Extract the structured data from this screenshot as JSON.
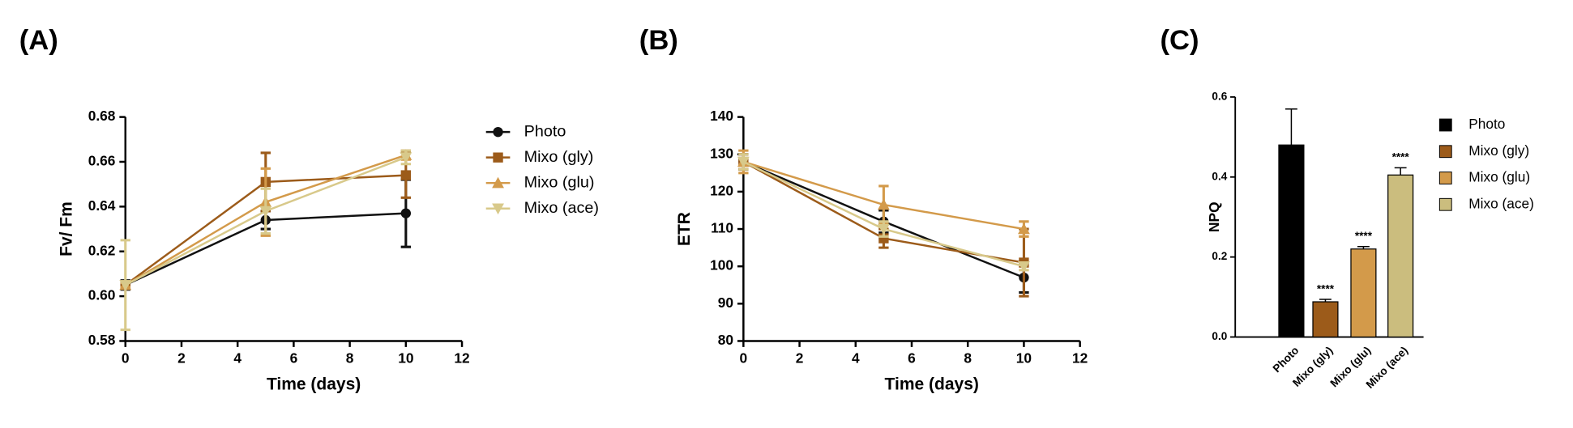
{
  "chart_data": [
    {
      "type": "line",
      "label": "(A)",
      "xlabel": "Time (days)",
      "ylabel": "Fv/ Fm",
      "xlim": [
        0,
        12
      ],
      "xticks": [
        0,
        2,
        4,
        6,
        8,
        10,
        12
      ],
      "ylim": [
        0.58,
        0.68
      ],
      "yticks": [
        0.58,
        {
          "value": 0.6,
          "label": "0.60"
        },
        0.62,
        0.64,
        0.66,
        0.68
      ],
      "x": [
        0,
        5,
        10
      ],
      "series": [
        {
          "name": "Photo",
          "color": "#111111",
          "marker": "circle",
          "values": [
            0.605,
            0.634,
            0.637
          ],
          "errors": [
            0.002,
            0.004,
            0.015
          ]
        },
        {
          "name": "Mixo (gly)",
          "color": "#9c5b1a",
          "marker": "square",
          "values": [
            0.605,
            0.651,
            0.654
          ],
          "errors": [
            0.001,
            0.013,
            0.01
          ]
        },
        {
          "name": "Mixo (glu)",
          "color": "#d39a4a",
          "marker": "triangle-up",
          "values": [
            0.605,
            0.642,
            0.663
          ],
          "errors": [
            0.001,
            0.015,
            0.002
          ]
        },
        {
          "name": "Mixo (ace)",
          "color": "#d8c98a",
          "marker": "triangle-down",
          "values": [
            0.605,
            0.638,
            0.662
          ],
          "errors": [
            0.02,
            0.01,
            0.003
          ]
        }
      ]
    },
    {
      "type": "line",
      "label": "(B)",
      "xlabel": "Time (days)",
      "ylabel": "ETR",
      "xlim": [
        0,
        12
      ],
      "xticks": [
        0,
        2,
        4,
        6,
        8,
        10,
        12
      ],
      "ylim": [
        80,
        140
      ],
      "yticks": [
        80,
        90,
        100,
        110,
        120,
        130,
        140
      ],
      "x": [
        0,
        5,
        10
      ],
      "series": [
        {
          "name": "Photo",
          "color": "#111111",
          "marker": "circle",
          "values": [
            128,
            112,
            97
          ],
          "errors": [
            2,
            3,
            4
          ]
        },
        {
          "name": "Mixo (gly)",
          "color": "#9c5b1a",
          "marker": "square",
          "values": [
            128,
            107.5,
            101
          ],
          "errors": [
            2,
            2.5,
            9
          ]
        },
        {
          "name": "Mixo (glu)",
          "color": "#d39a4a",
          "marker": "triangle-up",
          "values": [
            128,
            116.5,
            110
          ],
          "errors": [
            3,
            5,
            2
          ]
        },
        {
          "name": "Mixo (ace)",
          "color": "#d8c98a",
          "marker": "triangle-down",
          "values": [
            128,
            110,
            100
          ],
          "errors": [
            2,
            2,
            1
          ]
        }
      ]
    },
    {
      "type": "bar",
      "label": "(C)",
      "ylabel": "NPQ",
      "ylim": [
        0,
        0.6
      ],
      "yticks": [
        {
          "value": 0,
          "label": "0.0"
        },
        0.2,
        0.4,
        0.6
      ],
      "categories": [
        "Photo",
        "Mixo (gly)",
        "Mixo (glu)",
        "Mixo (ace)"
      ],
      "values": [
        0.48,
        0.088,
        0.22,
        0.405
      ],
      "errors": [
        0.09,
        0.006,
        0.006,
        0.018
      ],
      "colors": [
        "#000000",
        "#9c5b1a",
        "#d39a4a",
        "#cbbd7e"
      ],
      "annotations": [
        null,
        "****",
        "****",
        "****"
      ]
    }
  ]
}
